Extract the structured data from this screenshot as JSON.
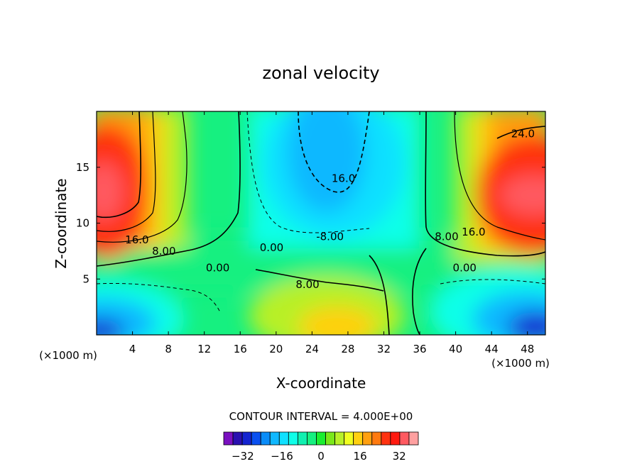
{
  "chart_data": {
    "type": "heatmap",
    "subtype": "filled-contour",
    "title": "zonal velocity",
    "xlabel": "X-coordinate",
    "ylabel": "Z-coordinate",
    "x_unit_left": "(×1000 m)",
    "x_unit_right": "(×1000 m)",
    "xlim": [
      0,
      50
    ],
    "ylim": [
      0,
      20
    ],
    "x_ticks": [
      4,
      8,
      12,
      16,
      20,
      24,
      28,
      32,
      36,
      40,
      44,
      48
    ],
    "y_ticks": [
      5,
      10,
      15
    ],
    "contour_interval_text": "CONTOUR INTERVAL = 4.000E+00",
    "contour_interval": 4,
    "colorbar": {
      "ticks": [
        "-32",
        "-16",
        "0",
        "16",
        "32"
      ],
      "tick_values": [
        -32,
        -16,
        0,
        16,
        32
      ],
      "levels": [
        -36,
        -32,
        -28,
        -24,
        -20,
        -16,
        -12,
        -8,
        -4,
        0,
        4,
        8,
        12,
        16,
        20,
        24,
        28,
        32,
        36
      ],
      "colors": [
        "#7a10c0",
        "#2a10b0",
        "#1424d0",
        "#0a50f0",
        "#0a8cf8",
        "#10b8ff",
        "#10e0ff",
        "#10ffe8",
        "#10f0b0",
        "#16f080",
        "#1aee30",
        "#7ae81a",
        "#b8f028",
        "#f0ff20",
        "#ffd010",
        "#ffa010",
        "#ff7a10",
        "#ff3210",
        "#ff1a10",
        "#ff5a60",
        "#ffa0a0"
      ]
    },
    "contour_labels": [
      {
        "text": "16.0",
        "x": 4.5,
        "z": 8.5
      },
      {
        "text": "8.00",
        "x": 7.5,
        "z": 7.5
      },
      {
        "text": "0.00",
        "x": 13.5,
        "z": 6.0
      },
      {
        "text": "0.00",
        "x": 19.5,
        "z": 7.8
      },
      {
        "text": "8.00",
        "x": 23.5,
        "z": 4.5
      },
      {
        "text": "-8.00",
        "x": 26.0,
        "z": 8.8
      },
      {
        "text": "16.0",
        "x": 27.5,
        "z": 14.0
      },
      {
        "text": "8.00",
        "x": 39.0,
        "z": 8.8
      },
      {
        "text": "16.0",
        "x": 42.0,
        "z": 9.2
      },
      {
        "text": "0.00",
        "x": 41.0,
        "z": 6.0
      },
      {
        "text": "24.0",
        "x": 47.5,
        "z": 18.0
      }
    ]
  }
}
